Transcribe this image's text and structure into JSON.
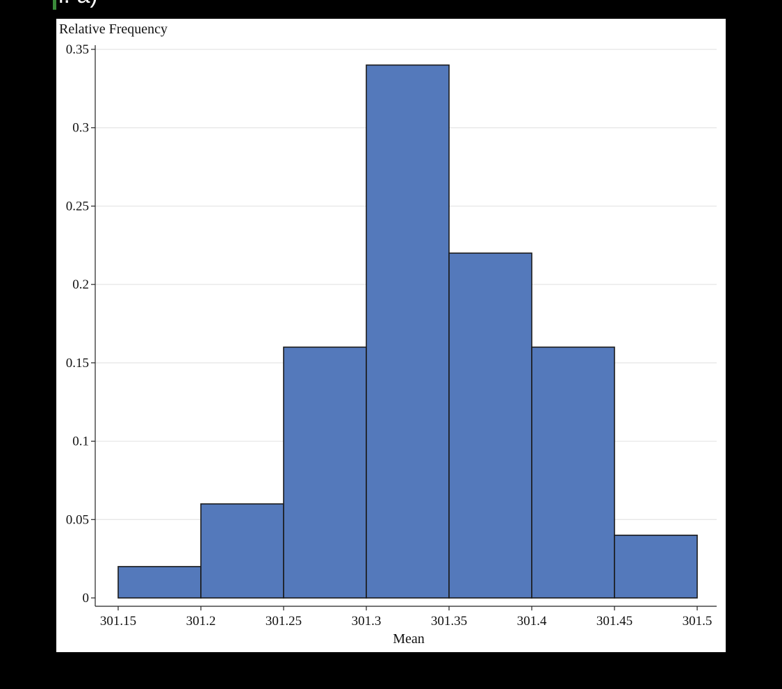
{
  "header": {
    "fragment_text": "i. a)"
  },
  "colors": {
    "bar_fill": "#5479bb",
    "bar_stroke": "#1a1a1a",
    "grid": "#e5e5e5",
    "accent": "#3a8a3a"
  },
  "chart_data": {
    "type": "bar",
    "ylabel": "Relative Frequency",
    "xlabel": "Mean",
    "bins": [
      {
        "start": 301.15,
        "end": 301.2,
        "value": 0.02
      },
      {
        "start": 301.2,
        "end": 301.25,
        "value": 0.06
      },
      {
        "start": 301.25,
        "end": 301.3,
        "value": 0.16
      },
      {
        "start": 301.3,
        "end": 301.35,
        "value": 0.34
      },
      {
        "start": 301.35,
        "end": 301.4,
        "value": 0.22
      },
      {
        "start": 301.4,
        "end": 301.45,
        "value": 0.16
      },
      {
        "start": 301.45,
        "end": 301.5,
        "value": 0.04
      }
    ],
    "xticks": [
      301.15,
      301.2,
      301.25,
      301.3,
      301.35,
      301.4,
      301.45,
      301.5
    ],
    "xtick_labels": [
      "301.15",
      "301.2",
      "301.25",
      "301.3",
      "301.35",
      "301.4",
      "301.45",
      "301.5"
    ],
    "yticks": [
      0,
      0.05,
      0.1,
      0.15,
      0.2,
      0.25,
      0.3,
      0.35
    ],
    "ytick_labels": [
      "0",
      "0.05",
      "0.1",
      "0.15",
      "0.2",
      "0.25",
      "0.3",
      "0.35"
    ],
    "xlim": [
      301.15,
      301.5
    ],
    "ylim": [
      0,
      0.35
    ],
    "grid": true,
    "legend": "none"
  }
}
